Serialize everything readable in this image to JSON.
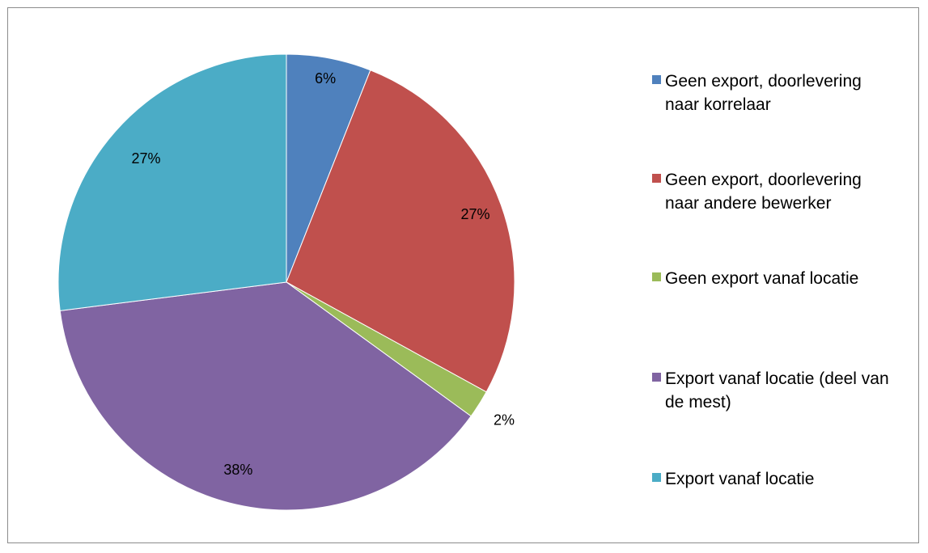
{
  "chart_data": {
    "type": "pie",
    "title": "",
    "legend_position": "right",
    "slices": [
      {
        "name": "Geen export, doorlevering naar korrelaar",
        "value": 6,
        "label": "6%",
        "color": "#4F81BD"
      },
      {
        "name": "Geen export, doorlevering naar andere bewerker",
        "value": 27,
        "label": "27%",
        "color": "#C0504D"
      },
      {
        "name": "Geen export vanaf locatie",
        "value": 2,
        "label": "2%",
        "color": "#9BBB59"
      },
      {
        "name": "Export vanaf locatie (deel van de mest)",
        "value": 38,
        "label": "38%",
        "color": "#8064A2"
      },
      {
        "name": "Export vanaf locatie",
        "value": 27,
        "label": "27%",
        "color": "#4BACC6"
      }
    ]
  },
  "legend": {
    "items": [
      {
        "label": "Geen export, doorlevering naar korrelaar",
        "color": "#4F81BD"
      },
      {
        "label": "Geen export, doorlevering naar andere bewerker",
        "color": "#C0504D"
      },
      {
        "label": "Geen export vanaf locatie",
        "color": "#9BBB59"
      },
      {
        "label": "Export vanaf locatie (deel van de mest)",
        "color": "#8064A2"
      },
      {
        "label": "Export vanaf locatie",
        "color": "#4BACC6"
      }
    ]
  }
}
